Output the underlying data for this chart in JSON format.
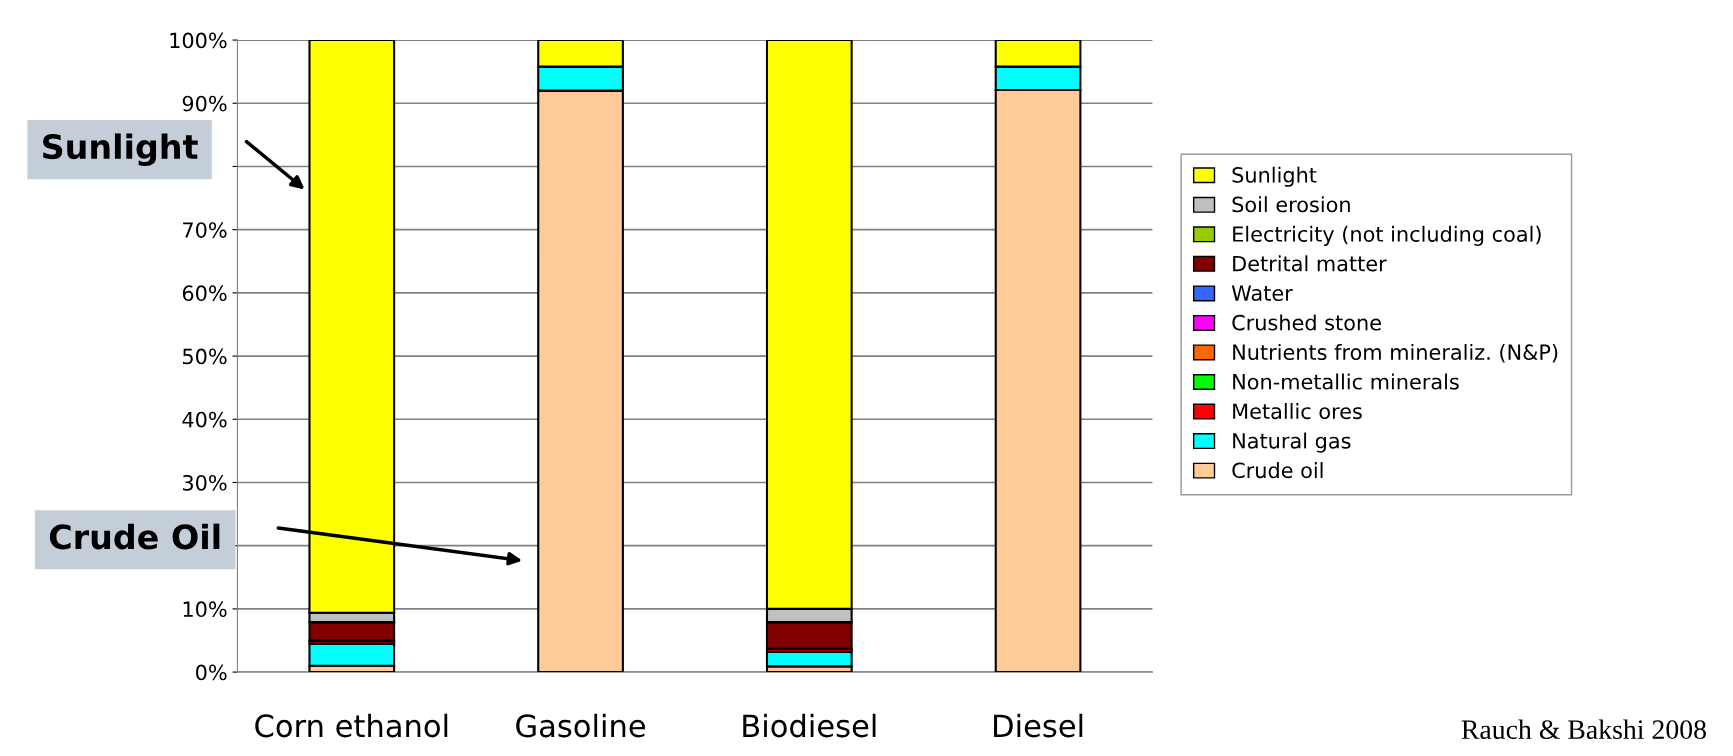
{
  "chart_data": {
    "type": "bar",
    "stacked": true,
    "categories": [
      "Corn ethanol",
      "Gasoline",
      "Biodiesel",
      "Diesel"
    ],
    "series": [
      {
        "name": "Crude oil",
        "color": "#ffcc99",
        "values": [
          1.0,
          92.0,
          0.9,
          92.1
        ]
      },
      {
        "name": "Natural gas",
        "color": "#00ffff",
        "values": [
          3.5,
          3.8,
          2.3,
          3.7
        ]
      },
      {
        "name": "Metallic ores",
        "color": "#ff0000",
        "values": [
          0.5,
          0,
          0.5,
          0
        ]
      },
      {
        "name": "Non-metallic minerals",
        "color": "#00ff00",
        "values": [
          0,
          0,
          0,
          0
        ]
      },
      {
        "name": "Nutrients from mineraliz. (N&P)",
        "color": "#ff6600",
        "values": [
          0,
          0,
          0,
          0
        ]
      },
      {
        "name": "Crushed stone",
        "color": "#ff00ff",
        "values": [
          0,
          0,
          0,
          0
        ]
      },
      {
        "name": "Water",
        "color": "#3366ff",
        "values": [
          0,
          0,
          0,
          0
        ]
      },
      {
        "name": "Detrital matter",
        "color": "#800000",
        "values": [
          2.9,
          0,
          4.2,
          0
        ]
      },
      {
        "name": "Electricity (not including coal)",
        "color": "#99cc00",
        "values": [
          0,
          0,
          0,
          0
        ]
      },
      {
        "name": "Soil erosion",
        "color": "#c0c0c0",
        "values": [
          1.5,
          0,
          2.1,
          0
        ]
      },
      {
        "name": "Sunlight",
        "color": "#ffff00",
        "values": [
          90.6,
          4.2,
          90.0,
          4.2
        ]
      }
    ],
    "ylim": [
      0,
      100
    ],
    "yticks": [
      {
        "value": 0,
        "label": "0%"
      },
      {
        "value": 10,
        "label": "10%"
      },
      {
        "value": 20,
        "label": null
      },
      {
        "value": 30,
        "label": "30%"
      },
      {
        "value": 40,
        "label": "40%"
      },
      {
        "value": 50,
        "label": "50%"
      },
      {
        "value": 60,
        "label": "60%"
      },
      {
        "value": 70,
        "label": "70%"
      },
      {
        "value": 80,
        "label": null
      },
      {
        "value": 90,
        "label": "90%"
      },
      {
        "value": 100,
        "label": "100%"
      }
    ],
    "grid": "y",
    "legend": "right",
    "annotations": [
      "Sunlight",
      "Crude Oil",
      "Rauch & Bakshi 2008"
    ]
  }
}
